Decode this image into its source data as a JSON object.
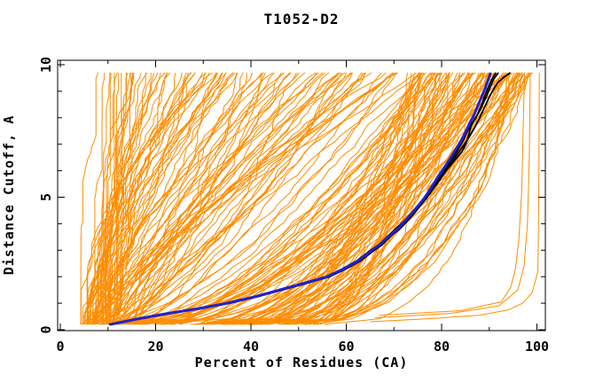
{
  "figure": {
    "background": "#FFFFFF"
  },
  "chart_data": {
    "type": "line",
    "title": "T1052-D2",
    "xlabel": "Percent of Residues (CA)",
    "ylabel": "Distance Cutoff, A",
    "xlim": [
      0,
      100
    ],
    "ylim": [
      0,
      10
    ],
    "x_major_ticks": [
      0,
      20,
      40,
      60,
      80,
      100
    ],
    "x_minor_ticks": [
      10,
      30,
      50,
      70,
      90
    ],
    "y_major_ticks": [
      0,
      5,
      10
    ],
    "y_minor_ticks": [
      1,
      2,
      3,
      4,
      6,
      7,
      8,
      9
    ],
    "grid": false,
    "legend": null,
    "frame": "box-with-inward-ticks-all-sides",
    "colors": {
      "ensemble": "#FF8C00",
      "highlight_blue": "#2222CC",
      "highlight_black": "#000000",
      "frame": "#000000",
      "background": "#FFFFFF"
    },
    "description": "CASP-style GDT plot: cumulative percent of CA residues (x) under each distance cutoff in Angstroms (y). ~200 orange model curves from cutoff 0.2 to 9.7 A; one blue and three black highlighted model curves; a few orange outlier curves reach ~100% at low cutoff in the lower right.",
    "highlight_series": [
      {
        "name": "blue-model-curve",
        "color": "#2222CC",
        "width": 3,
        "points_x_y": [
          [
            10.5,
            0.2
          ],
          [
            16,
            0.4
          ],
          [
            22,
            0.6
          ],
          [
            29,
            0.8
          ],
          [
            35,
            1.0
          ],
          [
            41,
            1.25
          ],
          [
            46,
            1.5
          ],
          [
            51,
            1.75
          ],
          [
            56,
            2.0
          ],
          [
            59.5,
            2.3
          ],
          [
            62.5,
            2.6
          ],
          [
            65,
            2.95
          ],
          [
            67,
            3.2
          ],
          [
            69,
            3.55
          ],
          [
            70.8,
            3.8
          ],
          [
            72.3,
            4.1
          ],
          [
            73.8,
            4.4
          ],
          [
            75.2,
            4.7
          ],
          [
            76.5,
            5.0
          ],
          [
            77.8,
            5.35
          ],
          [
            79,
            5.7
          ],
          [
            80.3,
            6.05
          ],
          [
            81.6,
            6.4
          ],
          [
            82.8,
            6.75
          ],
          [
            84,
            7.1
          ],
          [
            85,
            7.45
          ],
          [
            85.9,
            7.8
          ],
          [
            86.8,
            8.1
          ],
          [
            87.6,
            8.45
          ],
          [
            88.4,
            8.8
          ],
          [
            89.2,
            9.15
          ],
          [
            89.8,
            9.45
          ],
          [
            90.3,
            9.7
          ]
        ]
      },
      {
        "name": "black-model-curve-1",
        "color": "#000000",
        "width": 1.8,
        "points_x_y": [
          [
            10.8,
            0.2
          ],
          [
            16.5,
            0.4
          ],
          [
            22.6,
            0.6
          ],
          [
            29.5,
            0.8
          ],
          [
            35.6,
            1.0
          ],
          [
            41.5,
            1.25
          ],
          [
            46.6,
            1.5
          ],
          [
            51.6,
            1.75
          ],
          [
            56.5,
            2.0
          ],
          [
            60,
            2.3
          ],
          [
            63,
            2.6
          ],
          [
            65.5,
            2.95
          ],
          [
            67.5,
            3.2
          ],
          [
            69.4,
            3.55
          ],
          [
            71.2,
            3.8
          ],
          [
            72.8,
            4.1
          ],
          [
            74.3,
            4.4
          ],
          [
            75.6,
            4.7
          ],
          [
            77,
            5.0
          ],
          [
            78.4,
            5.35
          ],
          [
            79.8,
            5.7
          ],
          [
            81.2,
            6.05
          ],
          [
            82.8,
            6.4
          ],
          [
            84.2,
            6.7
          ],
          [
            85.1,
            7.0
          ],
          [
            85.6,
            7.3
          ],
          [
            86.2,
            7.7
          ],
          [
            87.2,
            8.0
          ],
          [
            88.2,
            8.4
          ],
          [
            89,
            8.8
          ],
          [
            89.9,
            9.2
          ],
          [
            90.7,
            9.5
          ],
          [
            91.4,
            9.7
          ]
        ]
      },
      {
        "name": "black-model-curve-2",
        "color": "#000000",
        "width": 1.8,
        "points_x_y": [
          [
            10.2,
            0.2
          ],
          [
            15.6,
            0.4
          ],
          [
            21.6,
            0.6
          ],
          [
            28.6,
            0.8
          ],
          [
            34.6,
            1.0
          ],
          [
            40.6,
            1.25
          ],
          [
            45.8,
            1.5
          ],
          [
            50.8,
            1.75
          ],
          [
            55.7,
            2.0
          ],
          [
            59.2,
            2.3
          ],
          [
            62.2,
            2.6
          ],
          [
            64.7,
            2.95
          ],
          [
            66.8,
            3.2
          ],
          [
            68.8,
            3.55
          ],
          [
            70.6,
            3.85
          ],
          [
            72.4,
            4.15
          ],
          [
            74.2,
            4.5
          ],
          [
            75.9,
            4.85
          ],
          [
            77.4,
            5.2
          ],
          [
            78.9,
            5.55
          ],
          [
            80.4,
            5.9
          ],
          [
            81.8,
            6.25
          ],
          [
            83.2,
            6.6
          ],
          [
            84.6,
            6.95
          ],
          [
            85.9,
            7.3
          ],
          [
            87,
            7.65
          ],
          [
            88,
            8.0
          ],
          [
            88.9,
            8.35
          ],
          [
            89.8,
            8.7
          ],
          [
            90.8,
            9.05
          ],
          [
            91.9,
            9.35
          ],
          [
            93.2,
            9.55
          ],
          [
            94.4,
            9.7
          ]
        ]
      },
      {
        "name": "black-model-curve-3",
        "color": "#000000",
        "width": 1.8,
        "points_x_y": [
          [
            10.4,
            0.2
          ],
          [
            16.2,
            0.4
          ],
          [
            22.3,
            0.6
          ],
          [
            29.2,
            0.8
          ],
          [
            35.3,
            1.0
          ],
          [
            41.2,
            1.25
          ],
          [
            46.3,
            1.5
          ],
          [
            51.3,
            1.75
          ],
          [
            56.2,
            2.0
          ],
          [
            59.7,
            2.3
          ],
          [
            62.7,
            2.6
          ],
          [
            65.2,
            2.95
          ],
          [
            67.2,
            3.2
          ],
          [
            69.1,
            3.55
          ],
          [
            70.9,
            3.8
          ],
          [
            72.5,
            4.1
          ],
          [
            74.0,
            4.4
          ],
          [
            75.3,
            4.7
          ],
          [
            76.7,
            5.0
          ],
          [
            78.0,
            5.35
          ],
          [
            79.4,
            5.7
          ],
          [
            80.7,
            6.05
          ],
          [
            82.0,
            6.4
          ],
          [
            83.3,
            6.75
          ],
          [
            84.4,
            7.1
          ],
          [
            85.3,
            7.45
          ],
          [
            86.4,
            7.8
          ],
          [
            87.5,
            8.1
          ],
          [
            88.5,
            8.45
          ],
          [
            89.4,
            8.8
          ],
          [
            90.2,
            9.15
          ],
          [
            90.9,
            9.45
          ],
          [
            91.9,
            9.7
          ]
        ]
      }
    ],
    "outlier_curves": [
      {
        "name": "orange-outlier-1",
        "points_x_y": [
          [
            65,
            0.3
          ],
          [
            78,
            0.42
          ],
          [
            88,
            0.55
          ],
          [
            94,
            0.75
          ],
          [
            97,
            1.0
          ],
          [
            99,
            1.4
          ],
          [
            100.2,
            2.2
          ],
          [
            100.4,
            5.0
          ],
          [
            100.5,
            9.7
          ]
        ]
      },
      {
        "name": "orange-outlier-2",
        "points_x_y": [
          [
            66,
            0.45
          ],
          [
            82,
            0.62
          ],
          [
            92,
            0.9
          ],
          [
            96,
            1.5
          ],
          [
            97.3,
            2.4
          ],
          [
            98,
            4.0
          ],
          [
            98.4,
            6.5
          ],
          [
            98.6,
            9.7
          ]
        ]
      },
      {
        "name": "orange-outlier-3",
        "points_x_y": [
          [
            67,
            0.55
          ],
          [
            84,
            0.72
          ],
          [
            92.5,
            1.05
          ],
          [
            94.5,
            1.6
          ],
          [
            95.5,
            2.3
          ],
          [
            96.2,
            3.4
          ],
          [
            96.8,
            5.2
          ],
          [
            97.4,
            9.7
          ]
        ]
      }
    ],
    "ensemble": {
      "color": "#FF8C00",
      "approx_count": 198,
      "y_start": 0.2,
      "y_end": 9.7,
      "steps": 44,
      "seed": 7,
      "jitter": 1.1,
      "groups": [
        {
          "count": 50,
          "x_start_range": [
            4,
            12
          ],
          "x_end_range": [
            6,
            38
          ],
          "shape_range": [
            0.8,
            2.2
          ]
        },
        {
          "count": 48,
          "x_start_range": [
            4,
            16
          ],
          "x_end_range": [
            38,
            76
          ],
          "shape_range": [
            0.55,
            1.4
          ]
        },
        {
          "count": 100,
          "x_start_range": [
            8,
            55
          ],
          "x_end_range": [
            74,
            99
          ],
          "shape_range": [
            0.3,
            0.75
          ]
        }
      ]
    }
  }
}
